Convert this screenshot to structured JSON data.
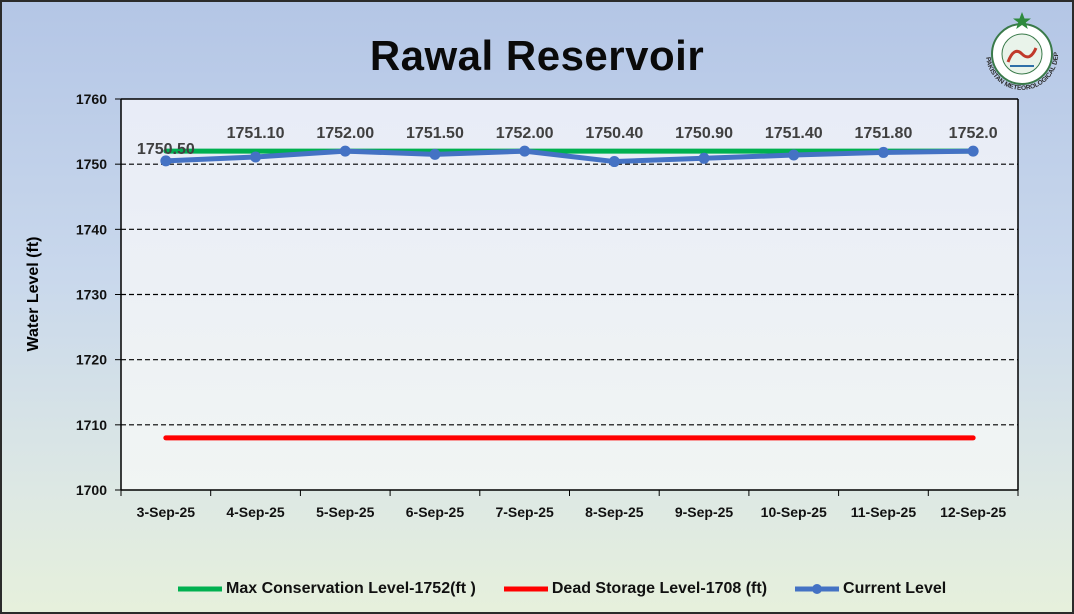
{
  "chart_data": {
    "type": "line",
    "title": "Rawal Reservoir",
    "ylabel": "Water Level (ft)",
    "xlabel": "",
    "ylim": [
      1700,
      1760
    ],
    "yticks": [
      1700,
      1710,
      1720,
      1730,
      1740,
      1750,
      1760
    ],
    "grid": "dashed horizontal",
    "legend_position": "bottom",
    "categories": [
      "3-Sep-25",
      "4-Sep-25",
      "5-Sep-25",
      "6-Sep-25",
      "7-Sep-25",
      "8-Sep-25",
      "9-Sep-25",
      "10-Sep-25",
      "11-Sep-25",
      "12-Sep-25"
    ],
    "series": [
      {
        "name": "Max Conservation Level-1752(ft )",
        "color": "#00b050",
        "values": [
          1752,
          1752,
          1752,
          1752,
          1752,
          1752,
          1752,
          1752,
          1752,
          1752
        ]
      },
      {
        "name": "Dead Storage Level-1708 (ft)",
        "color": "#ff0000",
        "values": [
          1708,
          1708,
          1708,
          1708,
          1708,
          1708,
          1708,
          1708,
          1708,
          1708
        ]
      },
      {
        "name": "Current Level",
        "color": "#4472c4",
        "values": [
          1750.5,
          1751.1,
          1752.0,
          1751.5,
          1752.0,
          1750.4,
          1750.9,
          1751.4,
          1751.8,
          1752.0
        ],
        "data_labels": [
          "1750.50",
          "1751.10",
          "1752.00",
          "1751.50",
          "1752.00",
          "1750.40",
          "1750.90",
          "1751.40",
          "1751.80",
          "1752.0"
        ]
      }
    ]
  },
  "logo": {
    "text": "PAKISTAN METEOROLOGICAL DEPARTMENT"
  }
}
